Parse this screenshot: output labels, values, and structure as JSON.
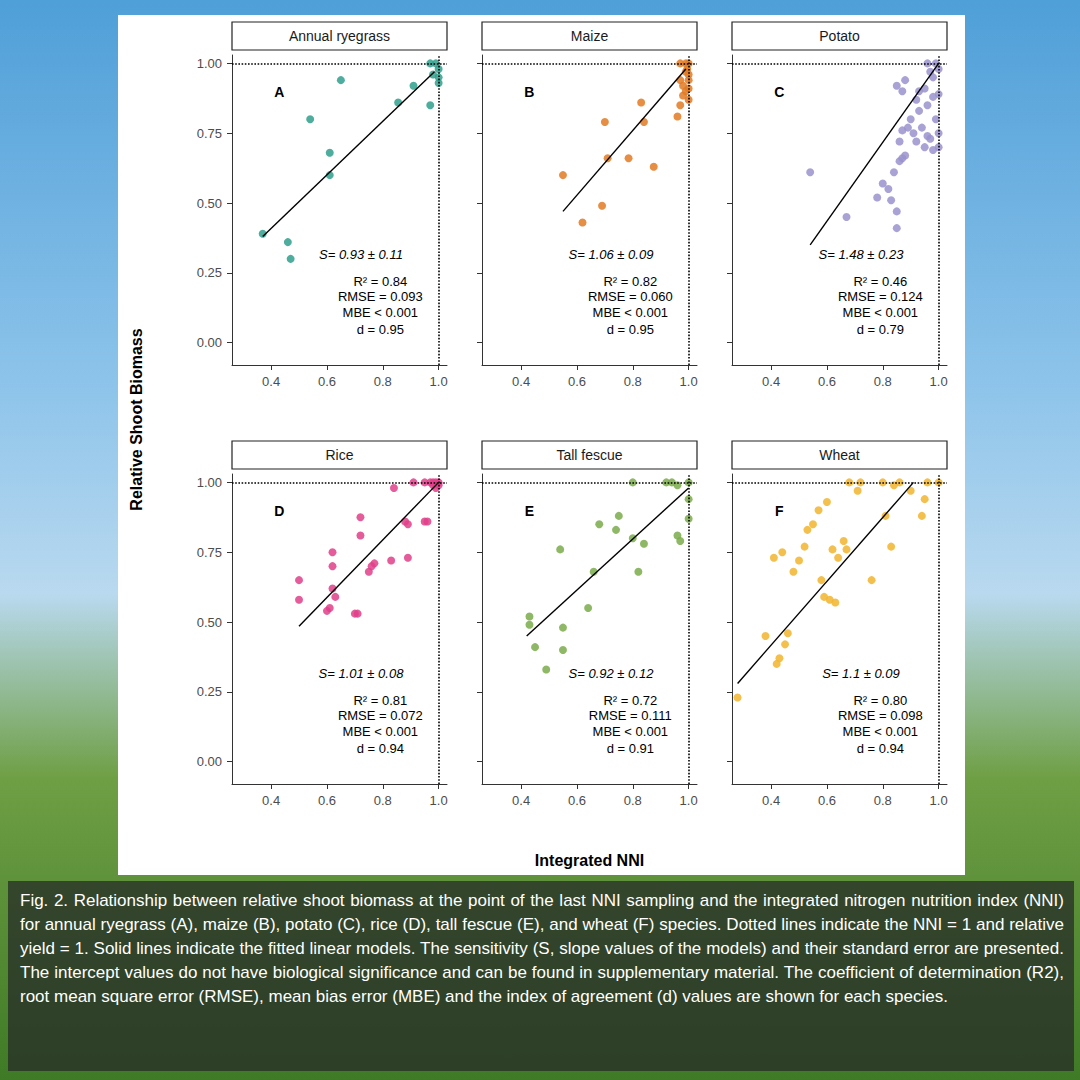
{
  "figure": {
    "xlabel": "Integrated NNI",
    "ylabel": "Relative Shoot Biomass",
    "caption": "Fig. 2. Relationship between relative shoot biomass at the point of the last NNI sampling and the integrated nitrogen nutrition index (NNI) for annual ryegrass (A), maize (B), potato (C), rice (D), tall fescue (E), and wheat (F) species. Dotted lines indicate the NNI = 1 and relative yield = 1. Solid lines indicate the fitted linear models. The sensitivity (S, slope values of the models) and their standard error are presented. The intercept values do not have biological significance and can be found in supplementary material. The coefficient of determination (R2), root mean square error (RMSE), mean bias error (MBE) and the index of agreement (d) values are shown for each species."
  },
  "chart_data": [
    {
      "type": "scatter",
      "title": "Annual ryegrass",
      "panel_label": "A",
      "color": "#2f9f8c",
      "marker": "circle",
      "grid": false,
      "x": [
        0.37,
        0.46,
        0.47,
        0.54,
        0.65,
        0.61,
        0.61,
        0.855,
        0.91,
        0.97,
        0.97,
        0.99,
        1.0,
        1.0,
        0.98,
        1.0
      ],
      "values": [
        0.39,
        0.36,
        0.3,
        0.8,
        0.94,
        0.68,
        0.6,
        0.86,
        0.92,
        0.85,
        1.0,
        1.0,
        0.98,
        0.95,
        0.96,
        0.93
      ],
      "fit": {
        "x": [
          0.37,
          0.985
        ],
        "values": [
          0.38,
          0.97
        ]
      },
      "ref_lines": {
        "x": 1,
        "y": 1
      },
      "slope_label": "S= 0.93 ± 0.11",
      "stats": [
        "R² = 0.84",
        "RMSE = 0.093",
        "MBE < 0.001",
        "d = 0.95"
      ],
      "xlim": [
        0.26,
        1.03
      ],
      "ylim": [
        -0.08,
        1.03
      ],
      "xticks": [
        0.4,
        0.6,
        0.8,
        {
          "value": 1,
          "label": "1.0"
        }
      ],
      "yticks": [
        {
          "value": 0,
          "label": "0.00"
        },
        0.25,
        {
          "value": 0.5,
          "label": "0.50"
        },
        0.75,
        {
          "value": 1,
          "label": "1.00"
        }
      ]
    },
    {
      "type": "scatter",
      "title": "Maize",
      "panel_label": "B",
      "color": "#e27a22",
      "marker": "circle",
      "grid": false,
      "tick_labels": "x",
      "x": [
        0.55,
        0.62,
        0.69,
        0.7,
        0.71,
        0.785,
        0.83,
        0.84,
        0.875,
        0.96,
        0.97,
        0.98,
        0.97,
        0.99,
        0.995,
        1.0,
        0.98,
        1.0,
        1.0,
        1.0,
        0.99,
        0.97,
        1.0,
        0.99
      ],
      "values": [
        0.6,
        0.43,
        0.49,
        0.79,
        0.66,
        0.66,
        0.86,
        0.79,
        0.63,
        0.81,
        0.85,
        0.885,
        0.94,
        1.0,
        0.98,
        0.96,
        0.92,
        0.91,
        0.87,
        1.0,
        0.97,
        1.0,
        0.94,
        0.9
      ],
      "fit": {
        "x": [
          0.55,
          0.99
        ],
        "values": [
          0.47,
          0.98
        ]
      },
      "ref_lines": {
        "x": 1,
        "y": 1
      },
      "slope_label": "S= 1.06 ± 0.09",
      "stats": [
        "R² = 0.82",
        "RMSE = 0.060",
        "MBE < 0.001",
        "d = 0.95"
      ],
      "xlim": [
        0.26,
        1.03
      ],
      "ylim": [
        -0.08,
        1.03
      ],
      "xticks": [
        0.4,
        0.6,
        0.8,
        {
          "value": 1,
          "label": "1.0"
        }
      ],
      "yticks": [
        {
          "value": 0,
          "label": "0.00"
        },
        0.25,
        {
          "value": 0.5,
          "label": "0.50"
        },
        0.75,
        {
          "value": 1,
          "label": "1.00"
        }
      ]
    },
    {
      "type": "scatter",
      "title": "Potato",
      "panel_label": "C",
      "color": "#9a92cc",
      "marker": "circle",
      "grid": false,
      "tick_labels": "x",
      "x": [
        0.54,
        0.67,
        0.78,
        0.8,
        0.82,
        0.83,
        0.85,
        0.85,
        0.84,
        0.86,
        0.87,
        0.88,
        0.86,
        0.87,
        0.89,
        0.9,
        0.91,
        0.92,
        0.93,
        0.94,
        0.95,
        0.96,
        0.97,
        0.98,
        1.0,
        1.0,
        0.99,
        0.96,
        0.93,
        0.95,
        0.98,
        0.87,
        0.88,
        0.85,
        0.98,
        1.0,
        0.99,
        0.96,
        0.97,
        1.0,
        0.92
      ],
      "values": [
        0.61,
        0.45,
        0.52,
        0.57,
        0.55,
        0.51,
        0.41,
        0.47,
        0.61,
        0.65,
        0.66,
        0.67,
        0.72,
        0.76,
        0.77,
        0.8,
        0.75,
        0.72,
        0.83,
        0.77,
        0.7,
        0.74,
        0.73,
        0.69,
        0.7,
        0.75,
        0.8,
        0.85,
        0.9,
        0.91,
        0.88,
        0.9,
        0.94,
        0.92,
        0.95,
        0.98,
        1.0,
        1.0,
        0.97,
        0.89,
        0.87
      ],
      "fit": {
        "x": [
          0.54,
          1.0
        ],
        "values": [
          0.35,
          1.0
        ]
      },
      "ref_lines": {
        "x": 1,
        "y": 1
      },
      "slope_label": "S= 1.48 ± 0.23",
      "stats": [
        "R² = 0.46",
        "RMSE = 0.124",
        "MBE < 0.001",
        "d = 0.79"
      ],
      "xlim": [
        0.26,
        1.03
      ],
      "ylim": [
        -0.08,
        1.03
      ],
      "xticks": [
        0.4,
        0.6,
        0.8,
        {
          "value": 1,
          "label": "1.0"
        }
      ],
      "yticks": [
        {
          "value": 0,
          "label": "0.00"
        },
        0.25,
        {
          "value": 0.5,
          "label": "0.50"
        },
        0.75,
        {
          "value": 1,
          "label": "1.00"
        }
      ]
    },
    {
      "type": "scatter",
      "title": "Rice",
      "panel_label": "D",
      "color": "#e0408a",
      "marker": "circle",
      "grid": false,
      "x": [
        0.5,
        0.5,
        0.62,
        0.62,
        0.62,
        0.61,
        0.6,
        0.63,
        0.72,
        0.72,
        0.7,
        0.71,
        0.75,
        0.77,
        0.76,
        0.83,
        0.84,
        0.88,
        0.89,
        0.89,
        0.91,
        0.95,
        0.96,
        0.95,
        0.97,
        0.98,
        0.99,
        1.0,
        1.0,
        0.98,
        0.99
      ],
      "values": [
        0.65,
        0.58,
        0.75,
        0.7,
        0.62,
        0.55,
        0.54,
        0.59,
        0.875,
        0.81,
        0.53,
        0.53,
        0.68,
        0.71,
        0.7,
        0.72,
        0.98,
        0.86,
        0.85,
        0.73,
        1.0,
        0.86,
        0.86,
        1.0,
        1.0,
        0.99,
        1.0,
        0.99,
        1.0,
        1.0,
        0.98
      ],
      "fit": {
        "x": [
          0.5,
          1.0
        ],
        "values": [
          0.485,
          1.0
        ]
      },
      "ref_lines": {
        "x": 1,
        "y": 1
      },
      "slope_label": "S= 1.01 ± 0.08",
      "stats": [
        "R² = 0.81",
        "RMSE = 0.072",
        "MBE < 0.001",
        "d = 0.94"
      ],
      "xlim": [
        0.26,
        1.03
      ],
      "ylim": [
        -0.08,
        1.03
      ],
      "xticks": [
        0.4,
        0.6,
        0.8,
        {
          "value": 1,
          "label": "1.0"
        }
      ],
      "yticks": [
        {
          "value": 0,
          "label": "0.00"
        },
        0.25,
        {
          "value": 0.5,
          "label": "0.50"
        },
        0.75,
        {
          "value": 1,
          "label": "1.00"
        }
      ]
    },
    {
      "type": "scatter",
      "title": "Tall fescue",
      "panel_label": "E",
      "color": "#7aac4a",
      "marker": "circle",
      "grid": false,
      "tick_labels": "x",
      "x": [
        0.43,
        0.43,
        0.45,
        0.49,
        0.54,
        0.55,
        0.55,
        0.64,
        0.66,
        0.68,
        0.74,
        0.75,
        0.8,
        0.8,
        0.82,
        0.84,
        0.92,
        0.94,
        0.96,
        0.96,
        0.97,
        1.0,
        1.0,
        1.0
      ],
      "values": [
        0.52,
        0.49,
        0.41,
        0.33,
        0.76,
        0.48,
        0.4,
        0.55,
        0.68,
        0.85,
        0.83,
        0.88,
        0.8,
        1.0,
        0.68,
        0.78,
        1.0,
        1.0,
        0.99,
        0.81,
        0.79,
        1.0,
        0.94,
        0.87
      ],
      "fit": {
        "x": [
          0.42,
          1.0
        ],
        "values": [
          0.45,
          0.98
        ]
      },
      "ref_lines": {
        "x": 1,
        "y": 1
      },
      "slope_label": "S= 0.92 ± 0.12",
      "stats": [
        "R² = 0.72",
        "RMSE = 0.111",
        "MBE < 0.001",
        "d = 0.91"
      ],
      "xlim": [
        0.26,
        1.03
      ],
      "ylim": [
        -0.08,
        1.03
      ],
      "xticks": [
        0.4,
        0.6,
        0.8,
        {
          "value": 1,
          "label": "1.0"
        }
      ],
      "yticks": [
        {
          "value": 0,
          "label": "0.00"
        },
        0.25,
        {
          "value": 0.5,
          "label": "0.50"
        },
        0.75,
        {
          "value": 1,
          "label": "1.00"
        }
      ]
    },
    {
      "type": "scatter",
      "title": "Wheat",
      "panel_label": "F",
      "color": "#f2b52e",
      "marker": "circle",
      "grid": false,
      "tick_labels": "x",
      "x": [
        0.28,
        0.38,
        0.42,
        0.43,
        0.45,
        0.46,
        0.41,
        0.44,
        0.48,
        0.5,
        0.53,
        0.55,
        0.52,
        0.57,
        0.6,
        0.58,
        0.59,
        0.61,
        0.63,
        0.62,
        0.64,
        0.66,
        0.68,
        0.67,
        0.71,
        0.72,
        0.76,
        0.8,
        0.81,
        0.83,
        0.84,
        0.86,
        0.9,
        0.94,
        0.95,
        1.0,
        0.96
      ],
      "values": [
        0.23,
        0.45,
        0.35,
        0.37,
        0.42,
        0.46,
        0.73,
        0.75,
        0.68,
        0.72,
        0.83,
        0.85,
        0.77,
        0.9,
        0.93,
        0.65,
        0.59,
        0.58,
        0.57,
        0.76,
        0.73,
        0.79,
        1.0,
        0.76,
        0.97,
        1.0,
        0.65,
        1.0,
        0.88,
        0.77,
        0.99,
        1.0,
        0.97,
        0.88,
        0.94,
        1.0,
        1.0
      ],
      "fit": {
        "x": [
          0.28,
          0.91
        ],
        "values": [
          0.28,
          1.0
        ]
      },
      "ref_lines": {
        "x": 1,
        "y": 1
      },
      "slope_label": "S= 1.1 ± 0.09",
      "stats": [
        "R² = 0.80",
        "RMSE = 0.098",
        "MBE < 0.001",
        "d = 0.94"
      ],
      "xlim": [
        0.26,
        1.03
      ],
      "ylim": [
        -0.08,
        1.03
      ],
      "xticks": [
        0.4,
        0.6,
        0.8,
        {
          "value": 1,
          "label": "1.0"
        }
      ],
      "yticks": [
        {
          "value": 0,
          "label": "0.00"
        },
        0.25,
        {
          "value": 0.5,
          "label": "0.50"
        },
        0.75,
        {
          "value": 1,
          "label": "1.00"
        }
      ]
    }
  ]
}
